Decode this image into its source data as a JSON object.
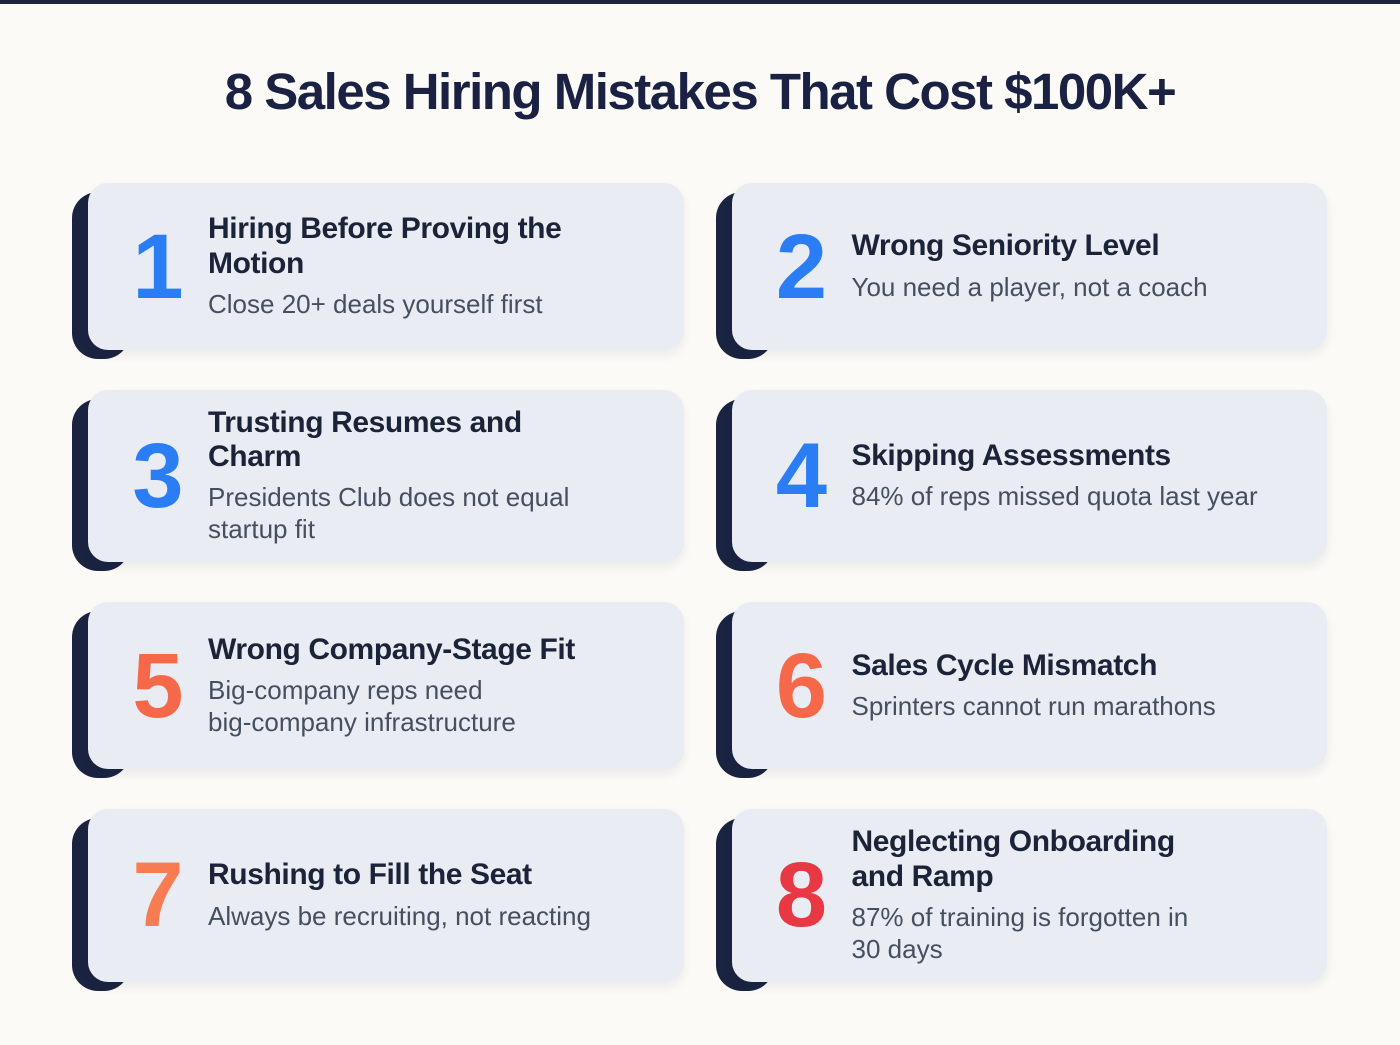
{
  "page": {
    "title": "8 Sales Hiring Mistakes That Cost $100K+",
    "background_color": "#fbfaf6",
    "top_bar_color": "#1a2340",
    "accent_navy": "#1a2340",
    "card_background": "#e9ecf2",
    "title_color": "#1b2142",
    "subtitle_color": "#454f5f",
    "number_palette": {
      "blue": "#2b7df5",
      "orange": "#f5694a",
      "red": "#e73844"
    }
  },
  "cards": [
    {
      "number": "1",
      "number_color": "#2b7df5",
      "title": "Hiring Before Proving the\nMotion",
      "subtitle": "Close 20+ deals yourself first"
    },
    {
      "number": "2",
      "number_color": "#2b7df5",
      "title": "Wrong Seniority Level",
      "subtitle": "You need a player, not a coach"
    },
    {
      "number": "3",
      "number_color": "#2b7df5",
      "title": "Trusting Resumes and\nCharm",
      "subtitle": "Presidents Club does not equal\nstartup fit"
    },
    {
      "number": "4",
      "number_color": "#2b7df5",
      "title": "Skipping Assessments",
      "subtitle": "84% of reps missed quota last year"
    },
    {
      "number": "5",
      "number_color": "#f5694a",
      "title": "Wrong Company-Stage Fit",
      "subtitle": "Big-company reps need\nbig-company infrastructure"
    },
    {
      "number": "6",
      "number_color": "#f5694a",
      "title": "Sales Cycle Mismatch",
      "subtitle": "Sprinters cannot run marathons"
    },
    {
      "number": "7",
      "number_color": "#f87c52",
      "title": "Rushing to Fill the Seat",
      "subtitle": "Always be recruiting, not reacting"
    },
    {
      "number": "8",
      "number_color": "#e73844",
      "title": "Neglecting Onboarding\nand Ramp",
      "subtitle": "87% of training is forgotten in\n30 days"
    }
  ]
}
